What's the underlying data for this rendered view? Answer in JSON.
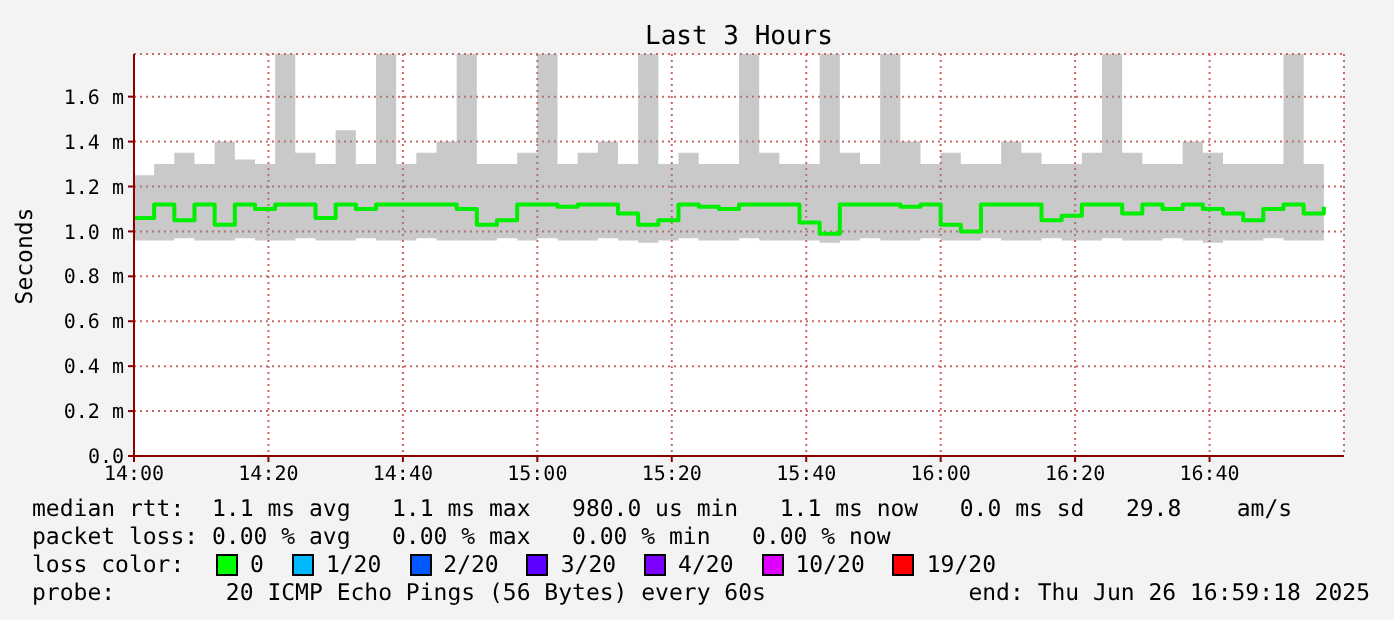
{
  "chart_data": {
    "type": "step",
    "title": "Last 3 Hours",
    "ylabel": "Seconds",
    "x": [
      14,
      14.05,
      14.1,
      14.15,
      14.2,
      14.25,
      14.3,
      14.35,
      14.4,
      14.45,
      14.5,
      14.55,
      14.6,
      14.65,
      14.7,
      14.75,
      14.8,
      14.85,
      14.9,
      14.95,
      15,
      15.05,
      15.1,
      15.15,
      15.2,
      15.25,
      15.3,
      15.35,
      15.4,
      15.45,
      15.5,
      15.55,
      15.6,
      15.65,
      15.7,
      15.75,
      15.8,
      15.85,
      15.9,
      15.95,
      16,
      16.05,
      16.1,
      16.15,
      16.2,
      16.25,
      16.3,
      16.35,
      16.4,
      16.45,
      16.5,
      16.55,
      16.6,
      16.65,
      16.7,
      16.75,
      16.8,
      16.85,
      16.9,
      16.95
    ],
    "series": [
      {
        "color": "#00ee00",
        "values": [
          1.06,
          1.12,
          1.05,
          1.12,
          1.03,
          1.12,
          1.1,
          1.12,
          1.12,
          1.06,
          1.12,
          1.1,
          1.12,
          1.12,
          1.12,
          1.12,
          1.1,
          1.03,
          1.05,
          1.12,
          1.12,
          1.11,
          1.12,
          1.12,
          1.08,
          1.03,
          1.05,
          1.12,
          1.11,
          1.1,
          1.12,
          1.12,
          1.12,
          1.04,
          0.99,
          1.12,
          1.12,
          1.12,
          1.11,
          1.12,
          1.03,
          1.0,
          1.12,
          1.12,
          1.12,
          1.05,
          1.07,
          1.12,
          1.12,
          1.08,
          1.12,
          1.1,
          1.12,
          1.1,
          1.08,
          1.05,
          1.1,
          1.12,
          1.08,
          1.11
        ],
        "lower": [
          0.96,
          0.96,
          0.97,
          0.96,
          0.96,
          0.97,
          0.96,
          0.96,
          0.97,
          0.96,
          0.96,
          0.97,
          0.96,
          0.96,
          0.97,
          0.96,
          0.96,
          0.96,
          0.97,
          0.96,
          0.97,
          0.96,
          0.96,
          0.97,
          0.96,
          0.95,
          0.96,
          0.97,
          0.96,
          0.96,
          0.97,
          0.96,
          0.96,
          0.96,
          0.95,
          0.96,
          0.97,
          0.96,
          0.96,
          0.97,
          0.96,
          0.96,
          0.97,
          0.96,
          0.96,
          0.97,
          0.96,
          0.96,
          0.97,
          0.96,
          0.96,
          0.97,
          0.96,
          0.95,
          0.96,
          0.96,
          0.97,
          0.96,
          0.96,
          0.97
        ],
        "upper": [
          1.25,
          1.3,
          1.35,
          1.3,
          1.4,
          1.32,
          1.3,
          1.79,
          1.35,
          1.3,
          1.45,
          1.3,
          1.79,
          1.3,
          1.35,
          1.4,
          1.79,
          1.3,
          1.3,
          1.35,
          1.79,
          1.3,
          1.35,
          1.4,
          1.3,
          1.79,
          1.3,
          1.35,
          1.3,
          1.3,
          1.79,
          1.35,
          1.3,
          1.3,
          1.79,
          1.35,
          1.3,
          1.79,
          1.4,
          1.3,
          1.35,
          1.3,
          1.3,
          1.4,
          1.35,
          1.3,
          1.3,
          1.35,
          1.79,
          1.35,
          1.3,
          1.3,
          1.4,
          1.35,
          1.3,
          1.3,
          1.3,
          1.79,
          1.3,
          1.3
        ]
      }
    ],
    "xlim": [
      14,
      17
    ],
    "xticks": [
      {
        "value": 14,
        "label": "14:00"
      },
      {
        "value": 14.3333,
        "label": "14:20"
      },
      {
        "value": 14.6667,
        "label": "14:40"
      },
      {
        "value": 15,
        "label": "15:00"
      },
      {
        "value": 15.3333,
        "label": "15:20"
      },
      {
        "value": 15.6667,
        "label": "15:40"
      },
      {
        "value": 16,
        "label": "16:00"
      },
      {
        "value": 16.3333,
        "label": "16:20"
      },
      {
        "value": 16.6667,
        "label": "16:40"
      }
    ],
    "ylim": [
      0,
      1.79
    ],
    "yticks": [
      {
        "value": 0,
        "label": "0.0"
      },
      {
        "value": 0.2,
        "label": "0.2 m"
      },
      {
        "value": 0.4,
        "label": "0.4 m"
      },
      {
        "value": 0.6,
        "label": "0.6 m"
      },
      {
        "value": 0.8,
        "label": "0.8 m"
      },
      {
        "value": 1,
        "label": "1.0 m"
      },
      {
        "value": 1.2,
        "label": "1.2 m"
      },
      {
        "value": 1.4,
        "label": "1.4 m"
      },
      {
        "value": 1.6,
        "label": "1.6 m"
      }
    ],
    "grid": true,
    "marker": "none",
    "line_style": "solid",
    "annotations": [
      "median rtt:  1.1 ms avg   1.1 ms max   980.0 us min   1.1 ms now   0.0 ms sd   29.8    am/s",
      "packet loss: 0.00 % avg   0.00 % max   0.00 % min   0.00 % now",
      "loss color:",
      "0",
      "1/20",
      "2/20",
      "3/20",
      "4/20",
      "10/20",
      "19/20",
      "probe:        20 ICMP Echo Pings (56 Bytes) every 60s",
      "end: Thu Jun 26 16:59:18 2025"
    ]
  }
}
